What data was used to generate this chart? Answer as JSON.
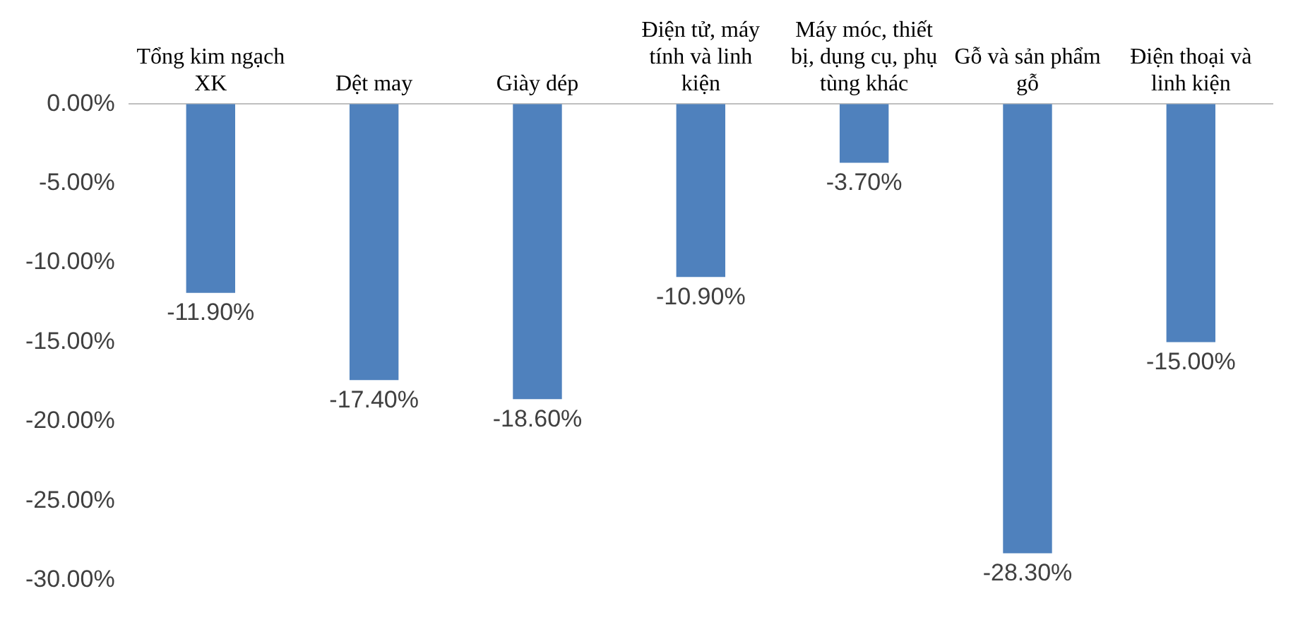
{
  "chart_data": {
    "type": "bar",
    "categories": [
      "Tổng kim ngạch XK",
      "Dệt may",
      "Giày dép",
      "Điện tử, máy tính và linh kiện",
      "Máy móc, thiết bị, dụng cụ, phụ tùng khác",
      "Gỗ và sản phẩm gỗ",
      "Điện thoại và linh kiện"
    ],
    "values": [
      -11.9,
      -17.4,
      -18.6,
      -10.9,
      -3.7,
      -28.3,
      -15.0
    ],
    "value_labels": [
      "-11.90%",
      "-17.40%",
      "-18.60%",
      "-10.90%",
      "-3.70%",
      "-28.30%",
      "-15.00%"
    ],
    "color": "#4f81bd",
    "ylim": [
      -30,
      0
    ],
    "yticks": [
      {
        "value": 0,
        "label": "0.00%"
      },
      {
        "value": -5,
        "label": "-5.00%"
      },
      {
        "value": -10,
        "label": "-10.00%"
      },
      {
        "value": -15,
        "label": "-15.00%"
      },
      {
        "value": -20,
        "label": "-20.00%"
      },
      {
        "value": -25,
        "label": "-25.00%"
      },
      {
        "value": -30,
        "label": "-30.00%"
      }
    ],
    "grid": false,
    "legend": false
  }
}
